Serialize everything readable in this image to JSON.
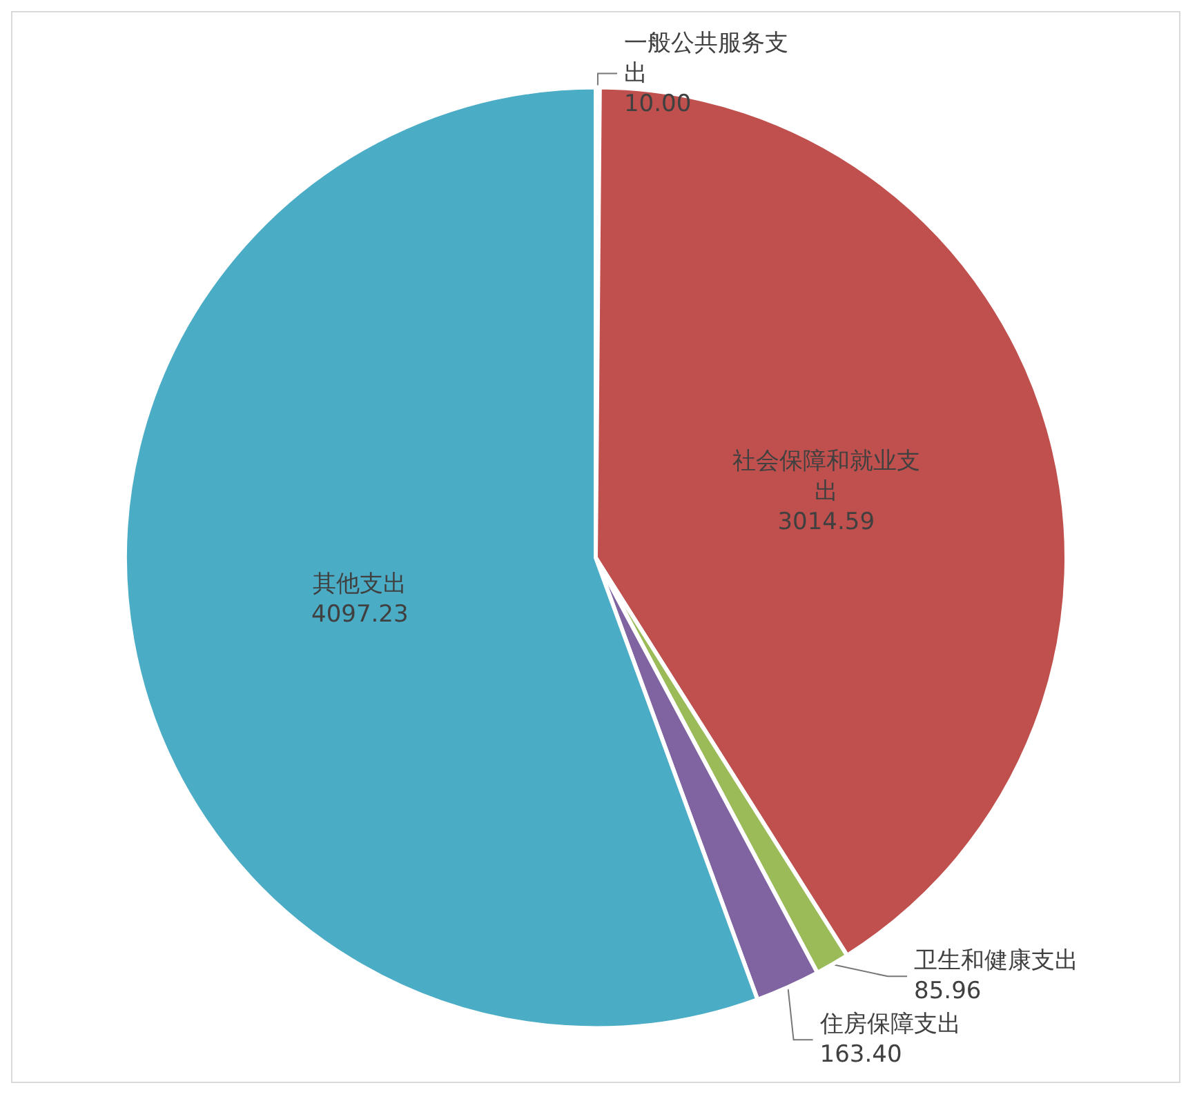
{
  "chart_data": {
    "type": "pie",
    "categories": [
      "一般公共服务支出",
      "社会保障和就业支出",
      "卫生和健康支出",
      "住房保障支出",
      "其他支出"
    ],
    "values": [
      10.0,
      3014.59,
      85.96,
      163.4,
      4097.23
    ],
    "value_labels": [
      "10.00",
      "3014.59",
      "85.96",
      "163.40",
      "4097.23"
    ],
    "colors": [
      "#4f81bd",
      "#c0504d",
      "#9bbb59",
      "#8064a2",
      "#4bacc6"
    ],
    "legend": false
  }
}
